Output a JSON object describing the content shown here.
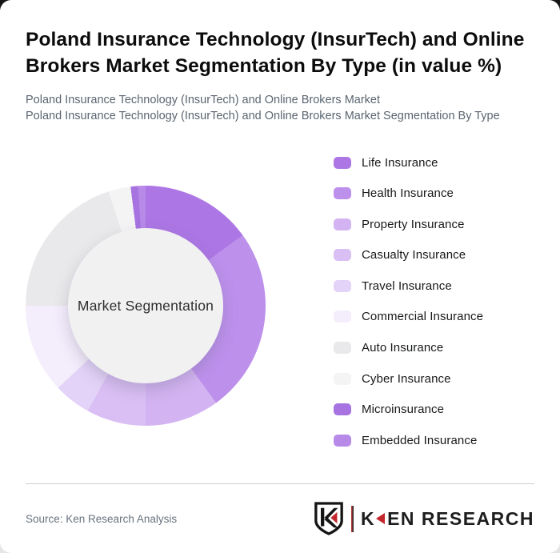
{
  "header": {
    "title": "Poland Insurance Technology (InsurTech) and Online Brokers Market Segmentation By Type (in value %)",
    "subtitle_line1": "Poland Insurance Technology (InsurTech) and Online Brokers Market",
    "subtitle_line2": "Poland Insurance Technology (InsurTech) and Online Brokers Market Segmentation By Type"
  },
  "chart_data": {
    "type": "pie",
    "subtype": "donut",
    "title": "Poland Insurance Technology (InsurTech) and Online Brokers Market Segmentation By Type (in value %)",
    "center_label": "Market Segmentation",
    "values_unit": "%",
    "legend_position": "right",
    "start_angle_deg": 0,
    "segments": [
      {
        "label": "Life Insurance",
        "value": 15,
        "color": "#ac76e4"
      },
      {
        "label": "Health Insurance",
        "value": 25,
        "color": "#bd90ec"
      },
      {
        "label": "Property Insurance",
        "value": 10,
        "color": "#d3b3f2"
      },
      {
        "label": "Casualty Insurance",
        "value": 8,
        "color": "#dabff4"
      },
      {
        "label": "Travel Insurance",
        "value": 5,
        "color": "#e4d3f8"
      },
      {
        "label": "Commercial Insurance",
        "value": 12,
        "color": "#f4edfc"
      },
      {
        "label": "Auto Insurance",
        "value": 20,
        "color": "#e9e8ea"
      },
      {
        "label": "Cyber Insurance",
        "value": 3,
        "color": "#f4f4f5"
      },
      {
        "label": "Microinsurance",
        "value": 1,
        "color": "#a673e1"
      },
      {
        "label": "Embedded Insurance",
        "value": 1,
        "color": "#b78ae8"
      }
    ]
  },
  "footer": {
    "source": "Source: Ken Research Analysis",
    "logo": {
      "monogram": "K",
      "wordmark_k": "K",
      "wordmark_rest": "EN RESEARCH",
      "accent_color": "#c4272b"
    }
  }
}
